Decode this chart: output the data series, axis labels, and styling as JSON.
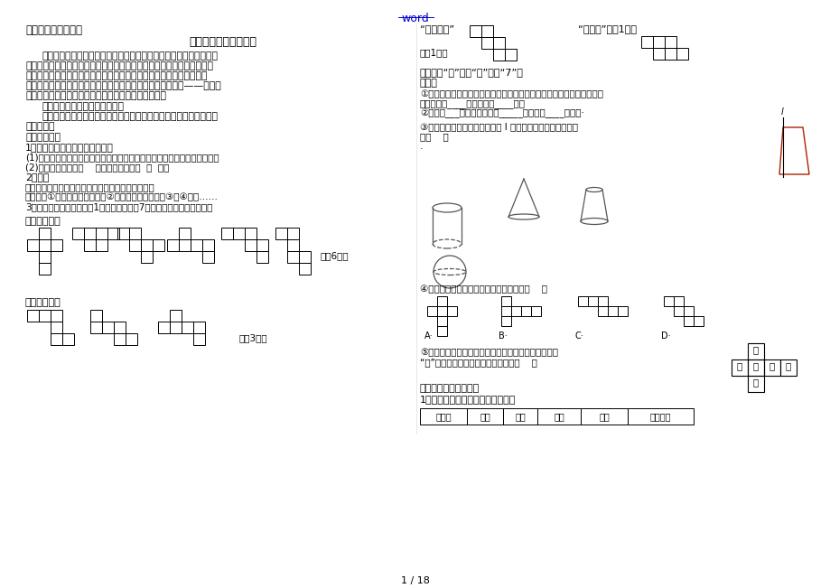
{
  "title_top": "word",
  "title_main": "初一数学上册总复习",
  "chapter_title": "第一章根本的几何图形",
  "bg_color": "#ffffff",
  "text_color": "#000000",
  "link_color": "#0000cc",
  "page_number": "1 / 18",
  "left_para1": "重点：根本的几何图形。这局部的主要内容是图形的初步认识，从学",
  "left_para1b": "生生活周围熟悉的立体图形入手，使学生队物体形状的认识由模糊、感性",
  "left_para1c": "的上升到抽象的数学图形通过立体图形的展开图介绍立体图形与平面图",
  "left_para1d": "形的关系，从而引人组成立体图形和平面图形的最根本的图形——点、线",
  "left_para1e": "和面的介绍，进而以此为根底介绍线段、射线和直线，",
  "left_para2": "难点：进展线段的度量和比拟。",
  "left_para3": "目标：认识根本几何图形，掌握根本根本作图能力和的技巧。开展几",
  "left_para3b": "何思维模式",
  "left_s1": "一、几何图形",
  "left_i1": "1．根本元素：点、线、面、体。",
  "left_i1a": "(1)点动成线，线动成面，面动成体。（体是由面围成的；面有平面和曲面）",
  "left_i1b": "(2)线与线相交【点】    面与面相交【线】  棱  顶点",
  "left_i2": "2．分类",
  "left_i2a": "几何图形有平面图形和立体图形【两者之间的转化】",
  "left_i2b": "几何体：①柱体【圆柱和棱柱】②锥体【圆锥和棱锥】③球④台体……",
  "left_i3": "3．正方体的平面展开图有1１种』【至少剪7条棱正方体展成平面图形】",
  "left_type1": "「一四一型」",
  "left_type2": "「二三一型」",
  "left_has6": "「有6种」",
  "left_has3": "「有3种」",
  "right_type222": "“二二二型”",
  "right_has1a": "「有1种」",
  "right_type33": "“三三型”「有1种」",
  "right_note1": "不能出现“田”字、“凹”字和“7”字",
  "right_kp": "考点：",
  "right_q1a": "①在六角螺母、乒乓球、圆形烟囱、书本、热水瓶胆等物体中，形状类似",
  "right_q1b": "于棱柱的有____个，球体有____个。",
  "right_q2": "②圆锥由___个面围成，其中_____个平面，____个曲面·",
  "right_q3a": "③将如下列图的直角梯形绕直线 l 旋转一周，得到的立体图形",
  "right_q3b": "是【    】",
  "right_q3c": "·",
  "right_q4": "④如下图形中为正方体的平面展开图的是【    】",
  "right_q5a": "⑤如图，是一个正方体的外表展开图，如此原正方体中",
  "right_q5b": "“梦”字所在的面相对的面上标的字是【    】",
  "right_s2": "二、线段、射线、直线",
  "right_i_line": "1．线段、射线、直线的区别和联系",
  "table_headers": [
    "延伸性",
    "端点",
    "长度",
    "图形",
    "表示",
    "作图描述"
  ],
  "cube_chars_pos": [
    [
      1,
      0,
      "伟"
    ],
    [
      0,
      1,
      "大"
    ],
    [
      1,
      1,
      "的"
    ],
    [
      2,
      1,
      "中"
    ],
    [
      3,
      1,
      "梦"
    ],
    [
      1,
      2,
      "国"
    ]
  ]
}
